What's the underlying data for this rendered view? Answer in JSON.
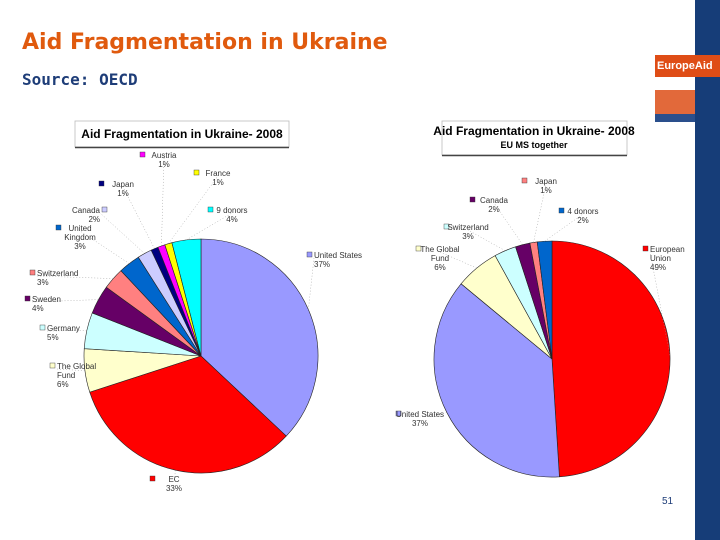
{
  "slide": {
    "title": "Aid Fragmentation in Ukraine",
    "source": "Source: OECD",
    "brand": "EuropeAid",
    "page_number": "51"
  },
  "colors": {
    "title": "#e05a0e",
    "source": "#1e3d78",
    "band": "#163d78",
    "brand_box": "#df4d16"
  },
  "chart_data": [
    {
      "type": "pie",
      "title": "Aid Fragmentation in Ukraine- 2008",
      "categories": [
        "United States",
        "EC",
        "The Global Fund",
        "Germany",
        "Sweden",
        "Switzerland",
        "United Kingdom",
        "Canada",
        "Japan",
        "Austria",
        "France",
        "9 donors"
      ],
      "labels": [
        "United States\n37%",
        "EC\n33%",
        "The Global\nFund\n6%",
        "Germany\n5%",
        "Sweden\n4%",
        "Switzerland\n3%",
        "United\nKingdom\n3%",
        "Canada\n2%",
        "Japan\n1%",
        "Austria\n1%",
        "France\n1%",
        "9 donors\n4%"
      ],
      "values": [
        37,
        33,
        6,
        5,
        4,
        3,
        3,
        2,
        1,
        1,
        1,
        4
      ],
      "colors": [
        "#9999ff",
        "#ff0000",
        "#ffffcc",
        "#ccffff",
        "#660066",
        "#ff8080",
        "#0066cc",
        "#ccccff",
        "#000080",
        "#ff00ff",
        "#ffff00",
        "#00ffff"
      ],
      "legend": "none"
    },
    {
      "type": "pie",
      "title": "Aid Fragmentation in Ukraine- 2008",
      "subtitle": "EU MS together",
      "categories": [
        "European Union",
        "United States",
        "The Global Fund",
        "Switzerland",
        "Canada",
        "Japan",
        "4 donors"
      ],
      "labels": [
        "European\nUnion\n49%",
        "United States\n37%",
        "The Global\nFund\n6%",
        "Switzerland\n3%",
        "Canada\n2%",
        "Japan\n1%",
        "4 donors\n2%"
      ],
      "values": [
        49,
        37,
        6,
        3,
        2,
        1,
        2
      ],
      "colors": [
        "#ff0000",
        "#9999ff",
        "#ffffcc",
        "#ccffff",
        "#660066",
        "#ff8080",
        "#0066cc"
      ],
      "legend": "none"
    }
  ]
}
